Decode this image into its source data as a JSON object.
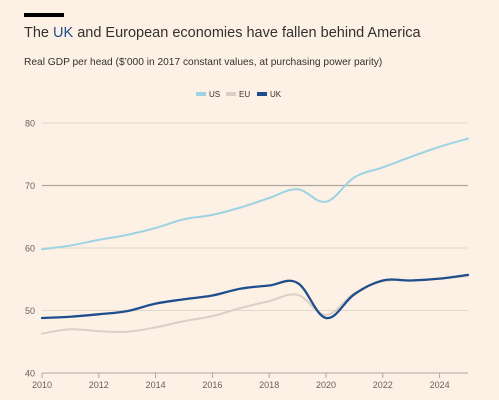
{
  "header": {
    "title_prefix": "The ",
    "title_highlight": "UK",
    "title_suffix": " and European economies have fallen behind America",
    "subtitle": "Real GDP per head ($’000 in 2017 constant values, at purchasing power parity)"
  },
  "colors": {
    "background": "#fdf1e6",
    "us": "#9dd3e3",
    "eu": "#dcd0c6",
    "uk": "#1f4e8c",
    "grid": "#d9cbbf",
    "highlight_grid": "#b0a69c",
    "axis_text": "#66605c"
  },
  "chart_data": {
    "type": "line",
    "title": "The UK and European economies have fallen behind America",
    "subtitle": "Real GDP per head ($’000 in 2017 constant values, at purchasing power parity)",
    "xlabel": "",
    "ylabel": "",
    "xlim": [
      2010,
      2025
    ],
    "ylim": [
      40,
      80
    ],
    "x_ticks": [
      2010,
      2012,
      2014,
      2016,
      2018,
      2020,
      2022,
      2024
    ],
    "y_ticks": [
      40,
      50,
      60,
      70,
      80
    ],
    "grid": true,
    "legend_position": "top-center",
    "series": [
      {
        "name": "US",
        "color_key": "us",
        "x": [
          2010,
          2011,
          2012,
          2013,
          2014,
          2015,
          2016,
          2017,
          2018,
          2019,
          2020,
          2021,
          2022,
          2023,
          2024,
          2025
        ],
        "values": [
          59.8,
          60.4,
          61.3,
          62.1,
          63.2,
          64.6,
          65.3,
          66.5,
          68.0,
          69.4,
          67.4,
          71.3,
          72.9,
          74.6,
          76.2,
          77.5
        ]
      },
      {
        "name": "EU",
        "color_key": "eu",
        "x": [
          2010,
          2011,
          2012,
          2013,
          2014,
          2015,
          2016,
          2017,
          2018,
          2019,
          2020,
          2021,
          2022,
          2023,
          2024,
          2025
        ],
        "values": [
          46.3,
          47.0,
          46.7,
          46.6,
          47.3,
          48.3,
          49.1,
          50.4,
          51.5,
          52.5,
          49.3,
          52.8,
          54.7,
          54.8,
          55.1,
          55.5
        ]
      },
      {
        "name": "UK",
        "color_key": "uk",
        "x": [
          2010,
          2011,
          2012,
          2013,
          2014,
          2015,
          2016,
          2017,
          2018,
          2019,
          2020,
          2021,
          2022,
          2023,
          2024,
          2025
        ],
        "values": [
          48.8,
          49.0,
          49.4,
          49.9,
          51.1,
          51.8,
          52.4,
          53.5,
          54.0,
          54.4,
          48.8,
          52.6,
          54.8,
          54.8,
          55.1,
          55.7
        ]
      }
    ]
  }
}
